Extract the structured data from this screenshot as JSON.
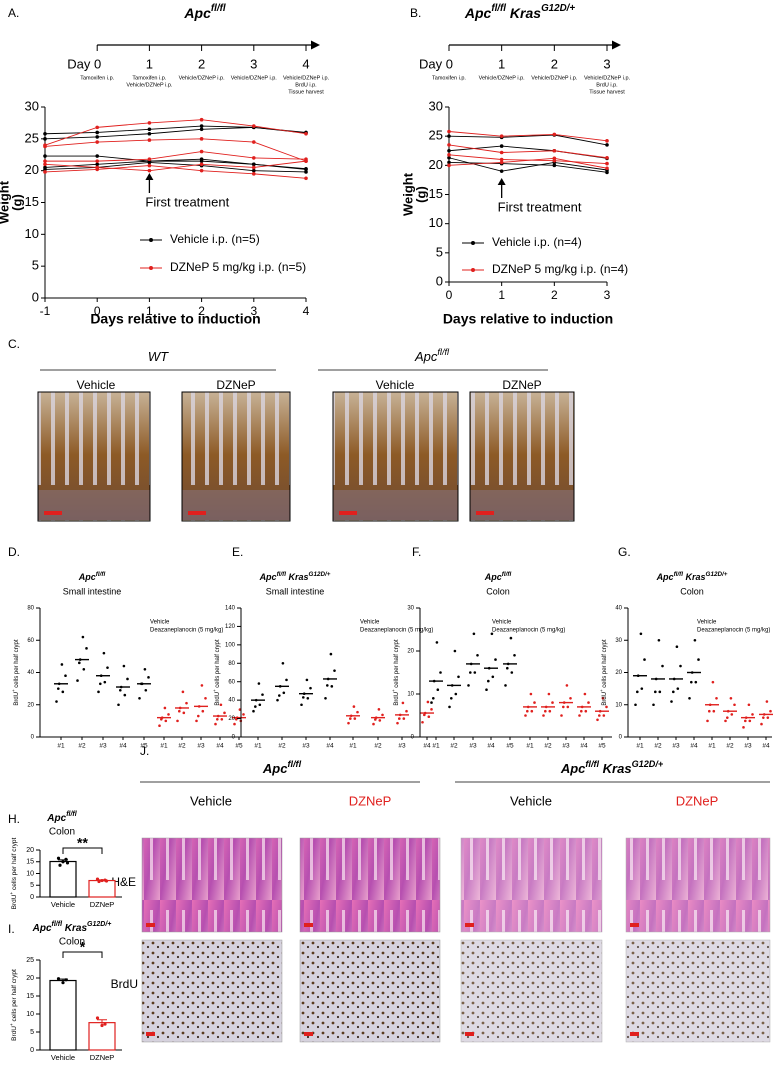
{
  "chart_data": [
    {
      "type": "line",
      "panel": "A.",
      "title_parts": [
        "Apc",
        "fl/fl"
      ],
      "timeline": {
        "ticks": [
          {
            "value": 0,
            "label": "Day 0"
          },
          1,
          2,
          3,
          4
        ],
        "notes": [
          [
            "Tamoxifen i.p."
          ],
          [
            "Tamoxifen i.p.",
            "Vehicle/DZNeP i.p."
          ],
          [
            "Vehicle/DZNeP i.p."
          ],
          [
            "Vehicle/DZNeP i.p."
          ],
          [
            "Vehicle/DZNeP i.p.",
            "BrdU i.p.",
            "Tissue harvest"
          ]
        ]
      },
      "x": [
        -1,
        0,
        1,
        2,
        3,
        4
      ],
      "xlim": [
        -1,
        4
      ],
      "xticks": [
        -1,
        0,
        1,
        2,
        3,
        4
      ],
      "ylim": [
        0,
        30
      ],
      "yticks": [
        0,
        5,
        10,
        15,
        20,
        25,
        30
      ],
      "ylabel": [
        "Weight",
        "(g)"
      ],
      "xlabel": "Days relative to induction",
      "annotation": {
        "text": "First treatment",
        "x": 1
      },
      "series": [
        {
          "name": "Vehicle i.p. (n=5)",
          "color": "#000000",
          "animals": [
            [
              25.8,
              26,
              26.5,
              27,
              26.8,
              26
            ],
            [
              25,
              25.3,
              25.8,
              26.5,
              26.8,
              25.9
            ],
            [
              22.3,
              22.3,
              21.5,
              21.5,
              21,
              20.3
            ],
            [
              20.5,
              21,
              21.5,
              21.8,
              21,
              20.2
            ],
            [
              20.2,
              20.5,
              21.3,
              20.8,
              20,
              19.8
            ]
          ]
        },
        {
          "name": "DZNeP 5 mg/kg i.p. (n=5)",
          "color": "#e0201e",
          "animals": [
            [
              24,
              26.8,
              27.5,
              28,
              27,
              25.8
            ],
            [
              23.8,
              24.5,
              24.8,
              25,
              24.5,
              21.5
            ],
            [
              21.5,
              21.5,
              21.8,
              23,
              22,
              21.8
            ],
            [
              21,
              20.5,
              20,
              21,
              20.5,
              21.5
            ],
            [
              19.8,
              20.2,
              20.8,
              20,
              19.5,
              18.8
            ]
          ]
        }
      ]
    },
    {
      "type": "line",
      "panel": "B.",
      "title_parts": [
        "Apc",
        "fl/fl",
        " Kras",
        "G12D/+"
      ],
      "timeline": {
        "ticks": [
          {
            "value": 0,
            "label": "Day 0"
          },
          1,
          2,
          3
        ],
        "notes": [
          [
            "Tamoxifen i.p."
          ],
          [
            "Vehicle/DZNeP i.p."
          ],
          [
            "Vehicle/DZNeP i.p."
          ],
          [
            "Vehicle/DZNeP i.p.",
            "BrdU i.p.",
            "Tissue harvest"
          ]
        ]
      },
      "x": [
        0,
        1,
        2,
        3
      ],
      "xlim": [
        0,
        3
      ],
      "xticks": [
        0,
        1,
        2,
        3
      ],
      "ylim": [
        0,
        30
      ],
      "yticks": [
        0,
        5,
        10,
        15,
        20,
        25,
        30
      ],
      "ylabel": [
        "Weight",
        "(g)"
      ],
      "xlabel": "Days relative to induction",
      "annotation": {
        "text": "First treatment",
        "x": 1
      },
      "series": [
        {
          "name": "Vehicle i.p. (n=4)",
          "color": "#000000",
          "animals": [
            [
              25,
              24.8,
              25.2,
              23.5
            ],
            [
              22.5,
              23.3,
              22.5,
              21.2
            ],
            [
              21.3,
              19,
              20.5,
              19.2
            ],
            [
              20.5,
              20.3,
              20,
              18.8
            ]
          ]
        },
        {
          "name": "DZNeP 5 mg/kg i.p. (n=4)",
          "color": "#e0201e",
          "animals": [
            [
              25.8,
              25,
              25.3,
              24.2
            ],
            [
              23.5,
              22.2,
              22.5,
              21.3
            ],
            [
              21.8,
              21,
              20.8,
              20.3
            ],
            [
              20,
              20.5,
              21.2,
              19.5
            ]
          ]
        }
      ]
    },
    {
      "type": "strip",
      "panel": "D.",
      "title_parts": [
        "Apc",
        "fl/fl"
      ],
      "subtitle": "Small intestine",
      "ylabel_parts": [
        "BrdU",
        "+",
        " cells per half crypt"
      ],
      "ylim": [
        0,
        80
      ],
      "yticks": [
        0,
        20,
        40,
        60,
        80
      ],
      "series": [
        {
          "name": "Vehicle",
          "color": "#000000",
          "categories": [
            "#1",
            "#2",
            "#3",
            "#4",
            "#5"
          ],
          "means": [
            33,
            48,
            38,
            31,
            33
          ],
          "groups": [
            [
              22,
              28,
              33,
              38,
              45,
              30
            ],
            [
              35,
              42,
              48,
              55,
              62,
              46
            ],
            [
              28,
              34,
              38,
              43,
              52,
              33
            ],
            [
              20,
              26,
              31,
              36,
              44,
              29
            ],
            [
              24,
              29,
              33,
              37,
              42,
              33
            ]
          ]
        },
        {
          "name": "Deazaneplanocin (5 mg/kg)",
          "color": "#e0201e",
          "categories": [
            "#1",
            "#2",
            "#3",
            "#4",
            "#5"
          ],
          "means": [
            12,
            18,
            19,
            13,
            12
          ],
          "groups": [
            [
              7,
              10,
              12,
              14,
              18,
              11
            ],
            [
              10,
              15,
              18,
              21,
              28,
              16
            ],
            [
              10,
              16,
              19,
              24,
              32,
              13
            ],
            [
              8,
              11,
              13,
              15,
              20,
              11
            ],
            [
              8,
              10,
              12,
              14,
              17,
              11
            ]
          ]
        }
      ]
    },
    {
      "type": "strip",
      "panel": "E.",
      "title_parts": [
        "Apc",
        "fl/fl",
        " Kras",
        "G12D/+"
      ],
      "subtitle": "Small intestine",
      "ylabel_parts": [
        "BrdU",
        "+",
        " cells per half crypt"
      ],
      "ylim": [
        0,
        140
      ],
      "yticks": [
        0,
        20,
        40,
        60,
        80,
        100,
        120,
        140
      ],
      "series": [
        {
          "name": "Vehicle",
          "color": "#000000",
          "categories": [
            "#1",
            "#2",
            "#3",
            "#4"
          ],
          "means": [
            40,
            55,
            47,
            63
          ],
          "groups": [
            [
              28,
              35,
              40,
              46,
              58,
              33
            ],
            [
              40,
              48,
              55,
              62,
              80,
              45
            ],
            [
              35,
              42,
              47,
              53,
              62,
              43
            ],
            [
              42,
              55,
              63,
              72,
              90,
              56
            ]
          ]
        },
        {
          "name": "Deazaneplanocin (5 mg/kg)",
          "color": "#e0201e",
          "categories": [
            "#1",
            "#2",
            "#3",
            "#4"
          ],
          "means": [
            23,
            21,
            24,
            26
          ],
          "groups": [
            [
              15,
              20,
              23,
              27,
              33,
              20
            ],
            [
              14,
              18,
              21,
              24,
              30,
              19
            ],
            [
              15,
              20,
              24,
              28,
              37,
              20
            ],
            [
              16,
              22,
              26,
              30,
              38,
              24
            ]
          ]
        }
      ]
    },
    {
      "type": "strip",
      "panel": "F.",
      "title_parts": [
        "Apc",
        "fl/fl"
      ],
      "subtitle": "Colon",
      "ylabel_parts": [
        "BrdU",
        "+",
        " cells per half crypt"
      ],
      "ylim": [
        0,
        30
      ],
      "yticks": [
        0,
        10,
        20,
        30
      ],
      "series": [
        {
          "name": "Vehicle",
          "color": "#000000",
          "categories": [
            "#1",
            "#2",
            "#3",
            "#4",
            "#5"
          ],
          "means": [
            13,
            12,
            17,
            16,
            17
          ],
          "groups": [
            [
              8,
              11,
              13,
              15,
              22,
              9
            ],
            [
              7,
              10,
              12,
              14,
              20,
              9
            ],
            [
              12,
              15,
              17,
              19,
              24,
              15
            ],
            [
              11,
              14,
              16,
              18,
              24,
              13
            ],
            [
              12,
              15,
              17,
              19,
              23,
              16
            ]
          ]
        },
        {
          "name": "Deazaneplanocin (5 mg/kg)",
          "color": "#e0201e",
          "categories": [
            "#1",
            "#2",
            "#3",
            "#4",
            "#5"
          ],
          "means": [
            7,
            7,
            8,
            7,
            6
          ],
          "groups": [
            [
              5,
              6,
              7,
              8,
              10,
              6
            ],
            [
              5,
              6,
              7,
              8,
              10,
              6
            ],
            [
              5,
              7,
              8,
              9,
              12,
              7
            ],
            [
              5,
              6,
              7,
              8,
              10,
              6
            ],
            [
              4,
              5,
              6,
              7,
              9,
              5
            ]
          ]
        }
      ]
    },
    {
      "type": "strip",
      "panel": "G.",
      "title_parts": [
        "Apc",
        "fl/fl",
        " Kras",
        "G12D/+"
      ],
      "subtitle": "Colon",
      "ylabel_parts": [
        "BrdU",
        "+",
        " cells per half crypt"
      ],
      "ylim": [
        0,
        40
      ],
      "yticks": [
        0,
        10,
        20,
        30,
        40
      ],
      "series": [
        {
          "name": "Vehicle",
          "color": "#000000",
          "categories": [
            "#1",
            "#2",
            "#3",
            "#4"
          ],
          "means": [
            19,
            18,
            18,
            20
          ],
          "groups": [
            [
              10,
              15,
              19,
              24,
              32,
              14
            ],
            [
              10,
              14,
              18,
              22,
              30,
              14
            ],
            [
              11,
              15,
              18,
              22,
              28,
              14
            ],
            [
              12,
              17,
              20,
              24,
              30,
              17
            ]
          ]
        },
        {
          "name": "Deazaneplanocin (5 mg/kg)",
          "color": "#e0201e",
          "categories": [
            "#1",
            "#2",
            "#3",
            "#4"
          ],
          "means": [
            10,
            8,
            6,
            7
          ],
          "groups": [
            [
              5,
              8,
              10,
              12,
              17,
              8
            ],
            [
              5,
              7,
              8,
              10,
              12,
              6
            ],
            [
              3,
              5,
              6,
              7,
              10,
              5
            ],
            [
              4,
              6,
              7,
              8,
              11,
              6
            ]
          ]
        }
      ]
    },
    {
      "type": "bar",
      "panel": "H.",
      "title_parts": [
        "Apc",
        "fl/fl"
      ],
      "subtitle": "Colon",
      "ylabel_parts": [
        "BrdU",
        "+",
        " cells per half crypt"
      ],
      "ylim": [
        0,
        20
      ],
      "yticks": [
        0,
        5,
        10,
        15,
        20
      ],
      "categories": [
        "Vehicle",
        "DZNeP"
      ],
      "colors": [
        "#000000",
        "#e0201e"
      ],
      "values": [
        15.1,
        7.0
      ],
      "errors": [
        0.7,
        0.3
      ],
      "points": [
        [
          16.5,
          16,
          15,
          13.5,
          14.5
        ],
        [
          7.6,
          7.2,
          7,
          6.6,
          6.8
        ]
      ],
      "significance": "**"
    },
    {
      "type": "bar",
      "panel": "I.",
      "title_parts": [
        "Apc",
        "fl/fl",
        " Kras",
        "G12D/+"
      ],
      "subtitle": "Colon",
      "ylabel_parts": [
        "BrdU",
        "+",
        " cells per half crypt"
      ],
      "ylim": [
        0,
        25
      ],
      "yticks": [
        0,
        5,
        10,
        15,
        20,
        25
      ],
      "categories": [
        "Vehicle",
        "DZNeP"
      ],
      "colors": [
        "#000000",
        "#e0201e"
      ],
      "values": [
        19.3,
        7.6
      ],
      "errors": [
        0.4,
        0.8
      ],
      "points": [
        [
          19.8,
          19.5,
          18.7
        ],
        [
          8.9,
          7.2,
          6.8
        ]
      ],
      "significance": "*"
    }
  ],
  "panel_c": {
    "label": "C.",
    "groups": [
      {
        "title_parts": [
          "WT"
        ],
        "columns": [
          "Vehicle",
          "DZNeP"
        ]
      },
      {
        "title_parts": [
          "Apc",
          "fl/fl"
        ],
        "columns": [
          "Vehicle",
          "DZNeP"
        ]
      }
    ]
  },
  "panel_j": {
    "label": "J.",
    "rows": [
      "H&E",
      "BrdU"
    ],
    "groups": [
      {
        "title_parts": [
          "Apc",
          "fl/fl"
        ],
        "columns": [
          "Vehicle",
          "DZNeP"
        ]
      },
      {
        "title_parts": [
          "Apc",
          "fl/fl",
          " Kras",
          "G12D/+"
        ],
        "columns": [
          "Vehicle",
          "DZNeP"
        ]
      }
    ]
  }
}
